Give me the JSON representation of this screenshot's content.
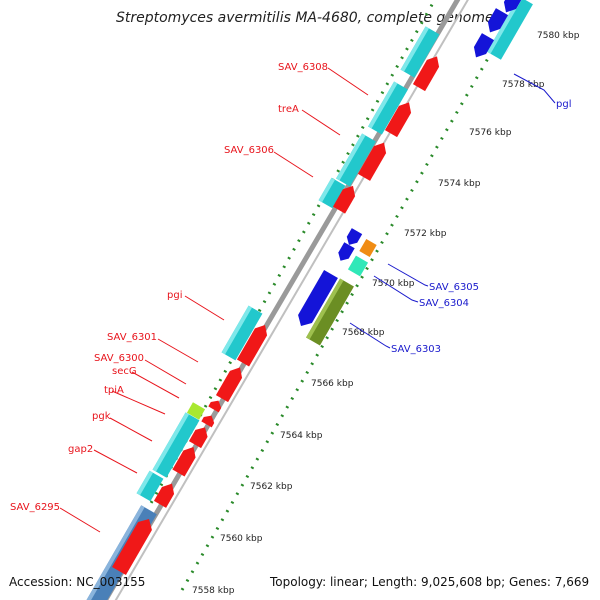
{
  "title": "Streptomyces avermitilis MA-4680, complete genome",
  "footer": {
    "accession": "Accession: NC_003155",
    "summary": "Topology: linear; Length: 9,025,608 bp; Genes: 7,669"
  },
  "colors": {
    "forward_label": "#e8141c",
    "reverse_label": "#1a1acc",
    "tick": "#2a8a2a",
    "backbone": "#9a9a9a",
    "gene_cyan": "#22c8cc",
    "gene_red": "#f01818",
    "gene_blue": "#1414d8",
    "gene_olive": "#6b8e23",
    "gene_orange": "#f08c14",
    "gene_mint": "#30e8b8",
    "gene_lime": "#a8e830",
    "gene_steel": "#4a80b8"
  },
  "scale_labels": {
    "k7558": "7558 kbp",
    "k7560": "7560 kbp",
    "k7562": "7562 kbp",
    "k7564": "7564 kbp",
    "k7566": "7566 kbp",
    "k7568": "7568 kbp",
    "k7570": "7570 kbp",
    "k7572": "7572 kbp",
    "k7574": "7574 kbp",
    "k7576": "7576 kbp",
    "k7578": "7578 kbp",
    "k7580": "7580 kbp"
  },
  "forward_genes": {
    "SAV_6308": "SAV_6308",
    "treA": "treA",
    "SAV_6306": "SAV_6306",
    "pgi": "pgi",
    "SAV_6301": "SAV_6301",
    "SAV_6300": "SAV_6300",
    "secG": "secG",
    "tpiA": "tpiA",
    "pgk": "pgk",
    "gap2": "gap2",
    "SAV_6295": "SAV_6295"
  },
  "reverse_genes": {
    "pgl": "pgl",
    "SAV_6305": "SAV_6305",
    "SAV_6304": "SAV_6304",
    "SAV_6303": "SAV_6303"
  }
}
